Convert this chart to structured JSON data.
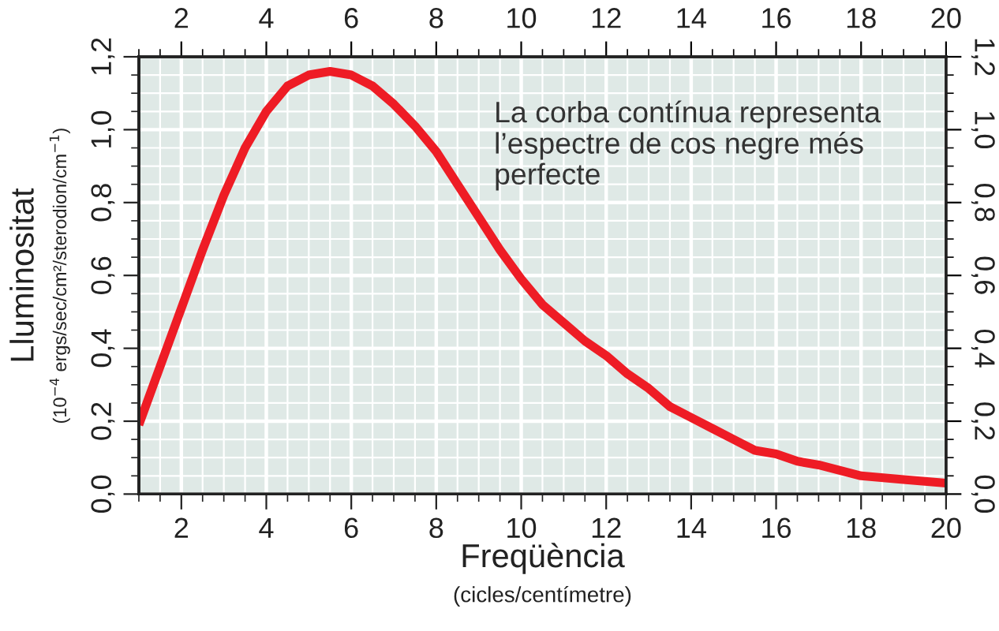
{
  "chart_data": {
    "type": "line",
    "xlabel": "Freqüència\n(cicles/centímetre)",
    "ylabel": "Lluminositat\n(10$^{−4}$ ergs/sec/cm²/sterodion/cm$^{−1}$)",
    "annotations": [
      "La corba contínua representa\nl’espectre de cos negre més\nperfecte"
    ],
    "series": [
      {
        "color": "#ee1c25",
        "x": [
          1,
          1.5,
          2,
          2.5,
          3,
          3.5,
          4,
          4.5,
          5,
          5.5,
          6,
          6.5,
          7,
          7.5,
          8,
          8.5,
          9,
          9.5,
          10,
          10.5,
          11,
          11.5,
          12,
          12.5,
          13,
          13.5,
          14,
          14.5,
          15,
          15.5,
          16,
          16.5,
          17,
          18,
          19,
          20
        ],
        "values": [
          0.19,
          0.35,
          0.51,
          0.67,
          0.82,
          0.95,
          1.05,
          1.12,
          1.15,
          1.16,
          1.15,
          1.12,
          1.07,
          1.01,
          0.94,
          0.85,
          0.76,
          0.67,
          0.59,
          0.52,
          0.47,
          0.42,
          0.38,
          0.33,
          0.29,
          0.24,
          0.21,
          0.18,
          0.15,
          0.12,
          0.11,
          0.09,
          0.08,
          0.05,
          0.04,
          0.03
        ]
      }
    ],
    "xlim": [
      1,
      20
    ],
    "xticks": [
      2,
      4,
      6,
      8,
      10,
      12,
      14,
      16,
      18,
      20
    ],
    "x2lim": [
      1,
      20
    ],
    "x2ticks": [
      2,
      4,
      6,
      8,
      10,
      12,
      14,
      16,
      18,
      20
    ],
    "ylim": [
      0,
      1.2
    ],
    "yticks": [
      {
        "value": 0,
        "label": "0,0"
      },
      {
        "value": 0.2,
        "label": "0,2"
      },
      {
        "value": 0.4,
        "label": "0,4"
      },
      {
        "value": 0.6,
        "label": "0,6"
      },
      {
        "value": 0.8,
        "label": "0,8"
      },
      {
        "value": 1.0,
        "label": "1,0"
      },
      {
        "value": 1.2,
        "label": "1,2"
      }
    ],
    "y2lim": [
      0,
      1.2
    ],
    "y2ticks": [
      {
        "value": 0,
        "label": "0,0"
      },
      {
        "value": 0.2,
        "label": "0,2"
      },
      {
        "value": 0.4,
        "label": "0,4"
      },
      {
        "value": 0.6,
        "label": "0,6"
      },
      {
        "value": 0.8,
        "label": "0,8"
      },
      {
        "value": 1.0,
        "label": "1,0"
      },
      {
        "value": 1.2,
        "label": "1,2"
      }
    ],
    "grid": true,
    "line_style": "solid",
    "marker": "none"
  }
}
